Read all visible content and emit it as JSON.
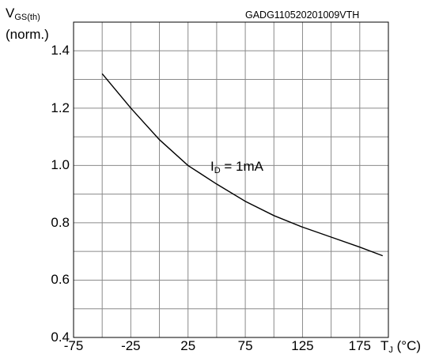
{
  "chart_data": {
    "type": "line",
    "code": "GADG110520201009VTH",
    "ylabel": {
      "main": "V",
      "sub": "GS(th)",
      "unit": "(norm.)"
    },
    "xlabel": {
      "main": "T",
      "sub": "J",
      "unit": " (°C)"
    },
    "annotation": {
      "main": "I",
      "sub": "D",
      "rest": " = 1mA"
    },
    "xlim": [
      -75,
      200
    ],
    "ylim": [
      0.4,
      1.5
    ],
    "x_ticks": [
      -75,
      -25,
      25,
      75,
      125,
      175
    ],
    "x_tick_labels": [
      "-75",
      "-25",
      "25",
      "75",
      "125",
      "175"
    ],
    "y_ticks": [
      0.4,
      0.6,
      0.8,
      1.0,
      1.2,
      1.4
    ],
    "y_tick_labels": [
      "0.4",
      "0.6",
      "0.8",
      "1.0",
      "1.2",
      "1.4"
    ],
    "grid": true,
    "series": [
      {
        "x": [
          -50,
          -25,
          0,
          25,
          50,
          75,
          100,
          125,
          150,
          175,
          195
        ],
        "y": [
          1.32,
          1.2,
          1.09,
          1.0,
          0.935,
          0.875,
          0.825,
          0.785,
          0.75,
          0.715,
          0.685
        ]
      }
    ]
  }
}
